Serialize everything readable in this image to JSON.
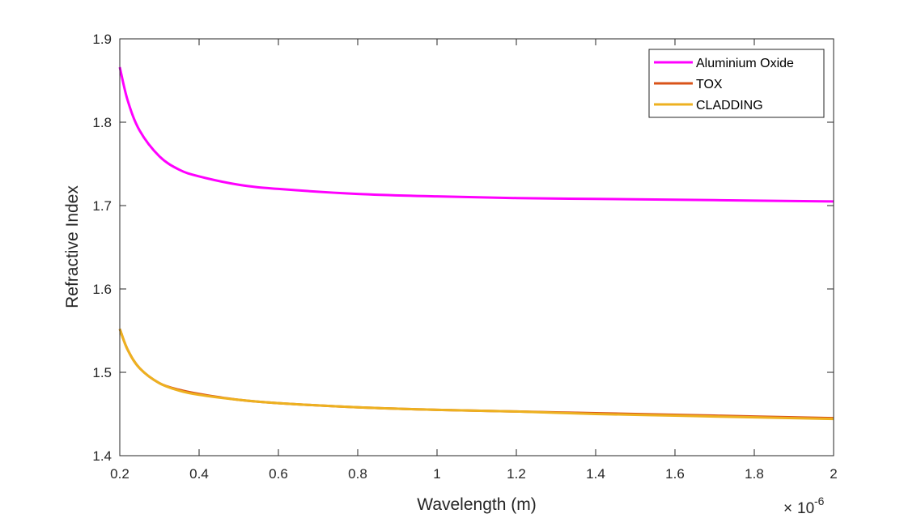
{
  "chart_data": {
    "type": "line",
    "title": "",
    "xlabel": "Wavelength (m)",
    "ylabel": "Refractive Index",
    "x_exponent": {
      "base": "10",
      "power": "-6"
    },
    "xlim": [
      0.2,
      2.0
    ],
    "ylim": [
      1.4,
      1.9
    ],
    "xticks": [
      0.2,
      0.4,
      0.6,
      0.8,
      1.0,
      1.2,
      1.4,
      1.6,
      1.8,
      2.0
    ],
    "xtick_labels": [
      "0.2",
      "0.4",
      "0.6",
      "0.8",
      "1",
      "1.2",
      "1.4",
      "1.6",
      "1.8",
      "2"
    ],
    "yticks": [
      1.4,
      1.5,
      1.6,
      1.7,
      1.8,
      1.9
    ],
    "ytick_labels": [
      "1.4",
      "1.5",
      "1.6",
      "1.7",
      "1.8",
      "1.9"
    ],
    "grid": false,
    "legend_position": "top-right",
    "series": [
      {
        "name": "Aluminium Oxide",
        "color": "#ff00ff",
        "x": [
          0.2,
          0.22,
          0.25,
          0.3,
          0.35,
          0.4,
          0.5,
          0.6,
          0.8,
          1.0,
          1.2,
          1.4,
          1.6,
          1.8,
          2.0
        ],
        "y": [
          1.866,
          1.826,
          1.79,
          1.759,
          1.743,
          1.735,
          1.725,
          1.72,
          1.714,
          1.711,
          1.709,
          1.708,
          1.707,
          1.706,
          1.705
        ]
      },
      {
        "name": "TOX",
        "color": "#d95319",
        "x": [
          0.2,
          0.22,
          0.25,
          0.3,
          0.35,
          0.4,
          0.5,
          0.6,
          0.8,
          1.0,
          1.2,
          1.4,
          1.6,
          1.8,
          2.0
        ],
        "y": [
          1.552,
          1.527,
          1.505,
          1.487,
          1.479,
          1.474,
          1.467,
          1.463,
          1.458,
          1.455,
          1.453,
          1.451,
          1.449,
          1.447,
          1.445
        ]
      },
      {
        "name": "CLADDING",
        "color": "#edb120",
        "x": [
          0.2,
          0.22,
          0.25,
          0.3,
          0.35,
          0.4,
          0.5,
          0.6,
          0.8,
          1.0,
          1.2,
          1.4,
          1.6,
          1.8,
          2.0
        ],
        "y": [
          1.552,
          1.527,
          1.505,
          1.487,
          1.478,
          1.473,
          1.467,
          1.463,
          1.458,
          1.455,
          1.453,
          1.45,
          1.448,
          1.446,
          1.444
        ]
      }
    ]
  }
}
